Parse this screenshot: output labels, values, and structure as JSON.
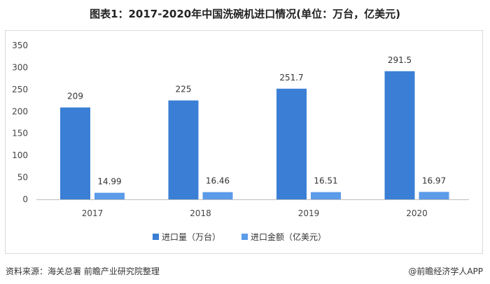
{
  "chart_data": {
    "type": "bar",
    "title": "图表1：2017-2020年中国洗碗机进口情况(单位：万台，亿美元)",
    "categories": [
      "2017",
      "2018",
      "2019",
      "2020"
    ],
    "series": [
      {
        "name": "进口量（万台）",
        "values": [
          209,
          225,
          251.7,
          291.5
        ],
        "color": "#3a7fd5"
      },
      {
        "name": "进口金额（亿美元）",
        "values": [
          14.99,
          16.46,
          16.51,
          16.97
        ],
        "color": "#5b9be8"
      }
    ],
    "value_labels": [
      [
        "209",
        "225",
        "251.7",
        "291.5"
      ],
      [
        "14.99",
        "16.46",
        "16.51",
        "16.97"
      ]
    ],
    "ylim": [
      0,
      350
    ],
    "yticks": [
      0,
      50,
      100,
      150,
      200,
      250,
      300,
      350
    ],
    "legend_position": "bottom",
    "grid": false
  },
  "footer": {
    "source": "资料来源：海关总署 前瞻产业研究院整理",
    "brand": "@前瞻经济学人APP"
  }
}
